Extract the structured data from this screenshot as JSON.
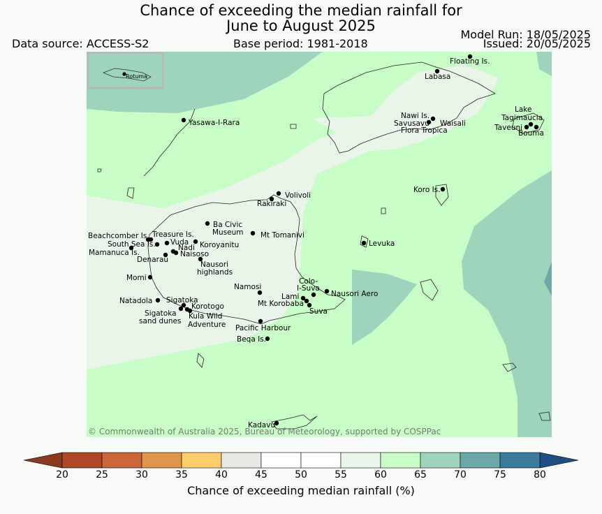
{
  "header": {
    "title_line1": "Chance of exceeding the median rainfall for",
    "title_line2": "June to August 2025",
    "data_source": "Data source: ACCESS-S2",
    "base_period": "Base period: 1981-2018",
    "model_run": "Model Run: 18/05/2025",
    "issued": "Issued: 20/05/2025"
  },
  "map": {
    "inset_label": "Rotuma",
    "copyright": "© Commonwealth of Australia 2025, Bureau of Meteorology, supported by COSPPac",
    "places": [
      {
        "id": "floating",
        "label": "Floating Is."
      },
      {
        "id": "labasa",
        "label": "Labasa"
      },
      {
        "id": "yasawa",
        "label": "Yasawa-I-Rara"
      },
      {
        "id": "nawi",
        "label": "Nawi Is."
      },
      {
        "id": "savusavu",
        "label": "Savusavu"
      },
      {
        "id": "waisali",
        "label": "Waisali"
      },
      {
        "id": "flora",
        "label": "Flora Tropica"
      },
      {
        "id": "lake",
        "label": "Lake"
      },
      {
        "id": "tagimaucia",
        "label": "Tagimaucia"
      },
      {
        "id": "taveuni",
        "label": "Taveuni"
      },
      {
        "id": "bouma",
        "label": "Bouma"
      },
      {
        "id": "volivoli",
        "label": "Volivoli"
      },
      {
        "id": "rakiraki",
        "label": "Rakiraki"
      },
      {
        "id": "koro",
        "label": "Koro Is."
      },
      {
        "id": "bacivic",
        "label": "Ba Civic"
      },
      {
        "id": "museum",
        "label": "Museum"
      },
      {
        "id": "tomanivi",
        "label": "Mt Tomanivi"
      },
      {
        "id": "beachcomber",
        "label": "Beachcomber Is."
      },
      {
        "id": "treasure",
        "label": "Treasure Is."
      },
      {
        "id": "southsea",
        "label": "South Sea Is."
      },
      {
        "id": "vuda",
        "label": "Vuda"
      },
      {
        "id": "koroyanitu",
        "label": "Koroyanitu"
      },
      {
        "id": "mamanuca",
        "label": "Mamanuca Is."
      },
      {
        "id": "nadi",
        "label": "Nadi"
      },
      {
        "id": "naisoso",
        "label": "Naisoso"
      },
      {
        "id": "denarau",
        "label": "Denarau"
      },
      {
        "id": "levuka",
        "label": "Levuka"
      },
      {
        "id": "nausori",
        "label": "Nausori"
      },
      {
        "id": "highlands",
        "label": "highlands"
      },
      {
        "id": "momi",
        "label": "Momi"
      },
      {
        "id": "namosi",
        "label": "Namosi"
      },
      {
        "id": "colo",
        "label": "Colo-"
      },
      {
        "id": "isuva",
        "label": "I-Suva"
      },
      {
        "id": "lami",
        "label": "Lami"
      },
      {
        "id": "nausoriaero",
        "label": "Nausori Aero"
      },
      {
        "id": "natadola",
        "label": "Natadola"
      },
      {
        "id": "sigatoka",
        "label": "Sigatoka"
      },
      {
        "id": "korotogo",
        "label": "Korotogo"
      },
      {
        "id": "mtkorobaba",
        "label": "Mt Korobaba"
      },
      {
        "id": "suva",
        "label": "Suva"
      },
      {
        "id": "sigsand1",
        "label": "Sigatoka"
      },
      {
        "id": "sigsand2",
        "label": "sand dunes"
      },
      {
        "id": "kula1",
        "label": "Kula Wild"
      },
      {
        "id": "kula2",
        "label": "Adventure"
      },
      {
        "id": "pacific",
        "label": "Pacific Harbour"
      },
      {
        "id": "beqa",
        "label": "Beqa Is."
      },
      {
        "id": "kadavu",
        "label": "Kadavu"
      }
    ]
  },
  "colorbar": {
    "title": "Chance of exceeding median rainfall (%)",
    "ticks": [
      "20",
      "25",
      "30",
      "35",
      "40",
      "45",
      "50",
      "55",
      "60",
      "65",
      "70",
      "75",
      "80"
    ],
    "colors": [
      "#ad4829",
      "#c9663a",
      "#e0954b",
      "#fdcd6c",
      "#e8e9e4",
      "#ffffff",
      "#ffffff",
      "#eaf5ea",
      "#c8fdc8",
      "#9ed4bc",
      "#6aa9a8",
      "#3c7a99"
    ],
    "under_color": "#8a3a20",
    "over_color": "#1f4e82"
  }
}
